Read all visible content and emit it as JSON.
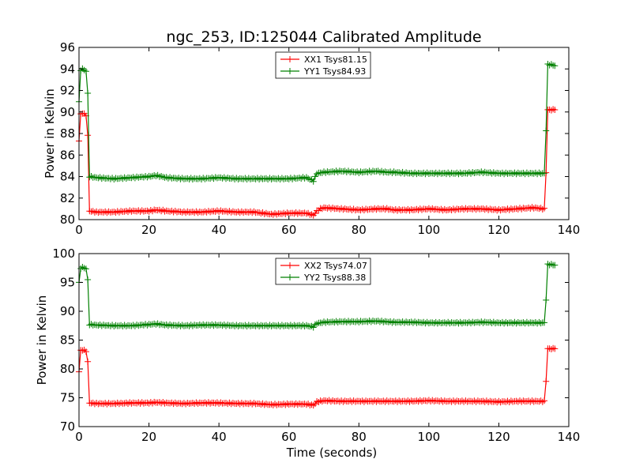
{
  "title": "ngc_253, ID:125044 Calibrated Amplitude",
  "chart_data": [
    {
      "type": "line",
      "xlabel": "",
      "ylabel": "Power in Kelvin",
      "xlim": [
        0,
        140
      ],
      "ylim": [
        80,
        96
      ],
      "xticks": [
        0,
        20,
        40,
        60,
        80,
        100,
        120,
        140
      ],
      "yticks": [
        80,
        82,
        84,
        86,
        88,
        90,
        92,
        94,
        96
      ],
      "grid": false,
      "legend_position": "top-center",
      "series": [
        {
          "name": "XX1 Tsys81.15",
          "color": "#ff0000",
          "points": [
            [
              0,
              87.3
            ],
            [
              0.5,
              89.8
            ],
            [
              1,
              89.9
            ],
            [
              1.5,
              89.8
            ],
            [
              2,
              89.7
            ],
            [
              2.5,
              87.8
            ],
            [
              3,
              80.8
            ],
            [
              5,
              80.7
            ],
            [
              10,
              80.7
            ],
            [
              15,
              80.8
            ],
            [
              20,
              80.8
            ],
            [
              22,
              80.9
            ],
            [
              25,
              80.8
            ],
            [
              30,
              80.7
            ],
            [
              35,
              80.7
            ],
            [
              40,
              80.8
            ],
            [
              45,
              80.7
            ],
            [
              50,
              80.7
            ],
            [
              55,
              80.5
            ],
            [
              60,
              80.6
            ],
            [
              65,
              80.6
            ],
            [
              67,
              80.4
            ],
            [
              68,
              80.8
            ],
            [
              69,
              81.0
            ],
            [
              70,
              81.1
            ],
            [
              75,
              81.0
            ],
            [
              80,
              80.9
            ],
            [
              85,
              81.0
            ],
            [
              88,
              81.0
            ],
            [
              90,
              80.9
            ],
            [
              95,
              80.9
            ],
            [
              100,
              81.0
            ],
            [
              105,
              80.9
            ],
            [
              110,
              81.0
            ],
            [
              115,
              81.0
            ],
            [
              120,
              80.9
            ],
            [
              125,
              81.0
            ],
            [
              130,
              81.1
            ],
            [
              133,
              81.0
            ],
            [
              133.5,
              84.4
            ],
            [
              134,
              90.2
            ],
            [
              135,
              90.2
            ],
            [
              136,
              90.2
            ]
          ]
        },
        {
          "name": "YY1 Tsys84.93",
          "color": "#008000",
          "points": [
            [
              0,
              90.9
            ],
            [
              0.5,
              93.9
            ],
            [
              1,
              94.0
            ],
            [
              1.5,
              93.9
            ],
            [
              2,
              93.8
            ],
            [
              2.5,
              91.7
            ],
            [
              3,
              84.0
            ],
            [
              5,
              83.9
            ],
            [
              10,
              83.8
            ],
            [
              15,
              83.9
            ],
            [
              20,
              84.0
            ],
            [
              22,
              84.1
            ],
            [
              25,
              83.9
            ],
            [
              30,
              83.8
            ],
            [
              35,
              83.8
            ],
            [
              40,
              83.9
            ],
            [
              45,
              83.8
            ],
            [
              50,
              83.8
            ],
            [
              55,
              83.8
            ],
            [
              60,
              83.8
            ],
            [
              65,
              83.9
            ],
            [
              67,
              83.6
            ],
            [
              68,
              84.3
            ],
            [
              70,
              84.4
            ],
            [
              75,
              84.5
            ],
            [
              80,
              84.4
            ],
            [
              85,
              84.5
            ],
            [
              88,
              84.4
            ],
            [
              90,
              84.4
            ],
            [
              95,
              84.3
            ],
            [
              100,
              84.3
            ],
            [
              105,
              84.3
            ],
            [
              110,
              84.3
            ],
            [
              115,
              84.4
            ],
            [
              120,
              84.3
            ],
            [
              125,
              84.3
            ],
            [
              130,
              84.3
            ],
            [
              133,
              84.3
            ],
            [
              133.5,
              88.3
            ],
            [
              134,
              94.4
            ],
            [
              135,
              94.4
            ],
            [
              136,
              94.3
            ]
          ]
        }
      ]
    },
    {
      "type": "line",
      "xlabel": "Time (seconds)",
      "ylabel": "Power in Kelvin",
      "xlim": [
        0,
        140
      ],
      "ylim": [
        70,
        100
      ],
      "xticks": [
        0,
        20,
        40,
        60,
        80,
        100,
        120,
        140
      ],
      "yticks": [
        70,
        75,
        80,
        85,
        90,
        95,
        100
      ],
      "grid": false,
      "legend_position": "top-center",
      "series": [
        {
          "name": "XX2 Tsys74.07",
          "color": "#ff0000",
          "points": [
            [
              0,
              79.5
            ],
            [
              0.5,
              83.2
            ],
            [
              1,
              83.3
            ],
            [
              1.5,
              83.2
            ],
            [
              2,
              83.1
            ],
            [
              2.5,
              81.2
            ],
            [
              3,
              74.1
            ],
            [
              5,
              74.0
            ],
            [
              10,
              74.0
            ],
            [
              15,
              74.1
            ],
            [
              20,
              74.1
            ],
            [
              22,
              74.2
            ],
            [
              25,
              74.1
            ],
            [
              30,
              74.0
            ],
            [
              35,
              74.1
            ],
            [
              40,
              74.1
            ],
            [
              45,
              74.0
            ],
            [
              50,
              74.0
            ],
            [
              55,
              73.8
            ],
            [
              60,
              73.9
            ],
            [
              65,
              73.9
            ],
            [
              67,
              73.7
            ],
            [
              68,
              74.3
            ],
            [
              70,
              74.5
            ],
            [
              75,
              74.4
            ],
            [
              80,
              74.4
            ],
            [
              85,
              74.4
            ],
            [
              90,
              74.4
            ],
            [
              95,
              74.4
            ],
            [
              100,
              74.5
            ],
            [
              105,
              74.4
            ],
            [
              110,
              74.4
            ],
            [
              115,
              74.4
            ],
            [
              120,
              74.3
            ],
            [
              125,
              74.4
            ],
            [
              130,
              74.4
            ],
            [
              133,
              74.4
            ],
            [
              133.5,
              77.9
            ],
            [
              134,
              83.5
            ],
            [
              135,
              83.5
            ],
            [
              136,
              83.5
            ]
          ]
        },
        {
          "name": "YY2 Tsys88.38",
          "color": "#008000",
          "points": [
            [
              0,
              94.9
            ],
            [
              0.5,
              97.5
            ],
            [
              1,
              97.6
            ],
            [
              1.5,
              97.5
            ],
            [
              2,
              97.4
            ],
            [
              2.5,
              95.4
            ],
            [
              3,
              87.7
            ],
            [
              5,
              87.6
            ],
            [
              10,
              87.5
            ],
            [
              15,
              87.5
            ],
            [
              20,
              87.7
            ],
            [
              22,
              87.8
            ],
            [
              25,
              87.6
            ],
            [
              30,
              87.5
            ],
            [
              35,
              87.6
            ],
            [
              40,
              87.6
            ],
            [
              45,
              87.5
            ],
            [
              50,
              87.5
            ],
            [
              55,
              87.5
            ],
            [
              60,
              87.5
            ],
            [
              65,
              87.5
            ],
            [
              67,
              87.3
            ],
            [
              68,
              87.9
            ],
            [
              70,
              88.1
            ],
            [
              75,
              88.2
            ],
            [
              80,
              88.2
            ],
            [
              85,
              88.3
            ],
            [
              90,
              88.1
            ],
            [
              95,
              88.1
            ],
            [
              100,
              88.0
            ],
            [
              105,
              88.0
            ],
            [
              110,
              88.0
            ],
            [
              115,
              88.1
            ],
            [
              120,
              88.0
            ],
            [
              125,
              88.0
            ],
            [
              130,
              88.0
            ],
            [
              133,
              88.0
            ],
            [
              133.5,
              92.0
            ],
            [
              134,
              98.1
            ],
            [
              135,
              98.1
            ],
            [
              136,
              98.0
            ]
          ]
        }
      ]
    }
  ]
}
